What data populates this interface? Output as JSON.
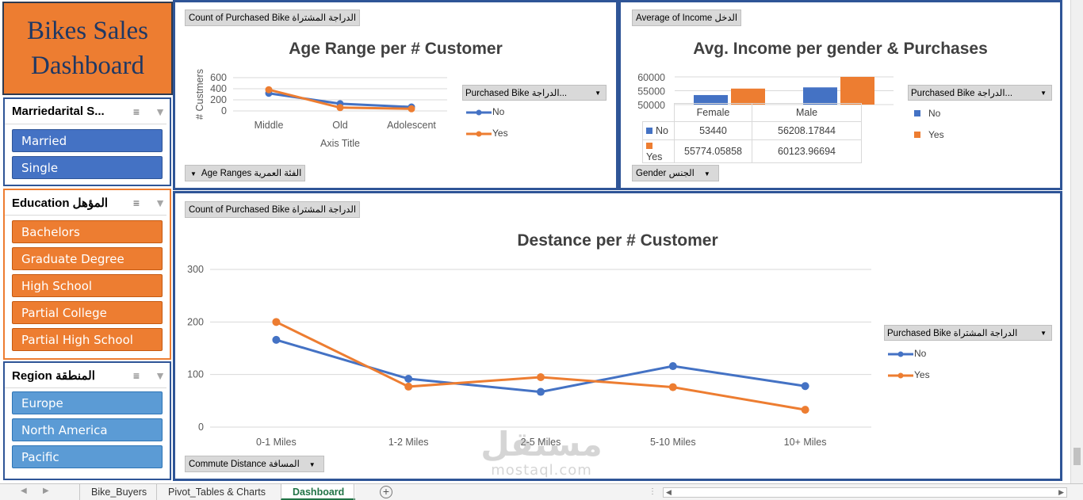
{
  "dashboard": {
    "title_line1": "Bikes Sales",
    "title_line2": "Dashboard"
  },
  "slicers": {
    "marital": {
      "title": "Marriedarital S...",
      "items": [
        "Married",
        "Single"
      ]
    },
    "education": {
      "title": "Education المؤهل",
      "items": [
        "Bachelors",
        "Graduate Degree",
        "High School",
        "Partial College",
        "Partial High School"
      ]
    },
    "region": {
      "title": "Region المنطقة",
      "items": [
        "Europe",
        "North America",
        "Pacific"
      ]
    },
    "icons": {
      "multiselect": "multi-select-icon",
      "clear": "clear-filter-icon"
    }
  },
  "age_chart": {
    "value_field": "Count of Purchased Bike الدراجة المشتراة",
    "axis_field": "Age Ranges الفئة العمرية",
    "legend_field": "Purchased Bike الدراجة...",
    "chart_data": {
      "type": "line",
      "title": "Age Range per # Customer",
      "xlabel": "Axis Title",
      "ylabel": "# Custmers",
      "categories": [
        "Middle",
        "Old",
        "Adolescent"
      ],
      "yticks": [
        0,
        200,
        400,
        600
      ],
      "ylim": [
        0,
        600
      ],
      "series": [
        {
          "name": "No",
          "values": [
            318,
            130,
            71
          ],
          "color": "#4472c4"
        },
        {
          "name": "Yes",
          "values": [
            383,
            60,
            39
          ],
          "color": "#ed7d31"
        }
      ],
      "legend": "right"
    }
  },
  "income_chart": {
    "value_field": "Average of Income الدخل",
    "axis_field": "Gender الجنس",
    "legend_field": "Purchased Bike الدراجة...",
    "chart_data": {
      "type": "bar",
      "title": "Avg. Income per gender & Purchases",
      "categories": [
        "Female",
        "Male"
      ],
      "yticks": [
        50000,
        55000,
        60000
      ],
      "ylim": [
        50000,
        60000
      ],
      "series": [
        {
          "name": "No",
          "values": [
            53440,
            56208.17844
          ],
          "labels": [
            "53440",
            "56208.17844"
          ],
          "color": "#4472c4"
        },
        {
          "name": "Yes",
          "values": [
            55774.05858,
            60123.96694
          ],
          "labels": [
            "55774.05858",
            "60123.96694"
          ],
          "color": "#ed7d31"
        }
      ],
      "legend": "right"
    }
  },
  "distance_chart": {
    "value_field": "Count of Purchased Bike الدراجة المشتراة",
    "axis_field": "Commute Distance المسافة",
    "legend_field": "Purchased Bike الدراجة المشتراة",
    "chart_data": {
      "type": "line",
      "title": "Destance per # Customer",
      "categories": [
        "0-1 Miles",
        "1-2 Miles",
        "2-5 Miles",
        "5-10 Miles",
        "10+ Miles"
      ],
      "yticks": [
        0,
        100,
        200,
        300
      ],
      "ylim": [
        0,
        300
      ],
      "series": [
        {
          "name": "No",
          "values": [
            166,
            92,
            67,
            116,
            78
          ],
          "color": "#4472c4"
        },
        {
          "name": "Yes",
          "values": [
            200,
            77,
            95,
            76,
            33
          ],
          "color": "#ed7d31"
        }
      ],
      "legend": "right"
    }
  },
  "sheet_tabs": [
    "Bike_Buyers",
    "Pivot_Tables & Charts",
    "Dashboard"
  ],
  "active_tab": "Dashboard",
  "watermark": {
    "line1": "مستقل",
    "line2": "mostaql.com"
  }
}
